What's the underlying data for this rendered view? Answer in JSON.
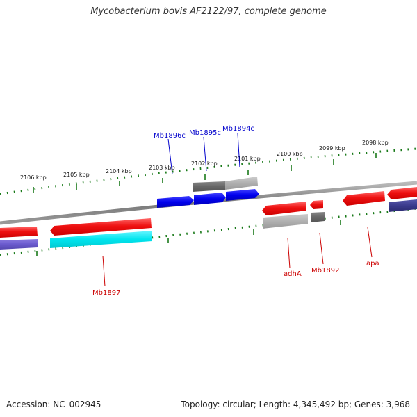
{
  "title": "Mycobacterium bovis AF2122/97, complete genome",
  "footer": {
    "accession": "Accession: NC_002945",
    "topology": "Topology: circular; Length: 4,345,492 bp; Genes: 3,968"
  },
  "colors": {
    "forward_cds": "#ee1111",
    "reverse_cds": "#0000ee",
    "gray_dark": "#666666",
    "gray_light": "#b0b0b0",
    "cyan": "#00e5ee",
    "purple": "#6a5acd",
    "navy": "#3a3a8c",
    "tick": "#1a7a1a",
    "backbone": "#888888",
    "label_forward": "#cc0000",
    "label_reverse": "#0000cc"
  },
  "scale_labels": [
    "2106 kbp",
    "2105 kbp",
    "2104 kbp",
    "2103 kbp",
    "2102 kbp",
    "2101 kbp",
    "2100 kbp",
    "2099 kbp",
    "2098 kbp"
  ],
  "gene_labels": {
    "mb1896c": "Mb1896c",
    "mb1895c": "Mb1895c",
    "mb1894c": "Mb1894c",
    "mb1897": "Mb1897",
    "adhA": "adhA",
    "mb1892": "Mb1892",
    "apa": "apa"
  }
}
